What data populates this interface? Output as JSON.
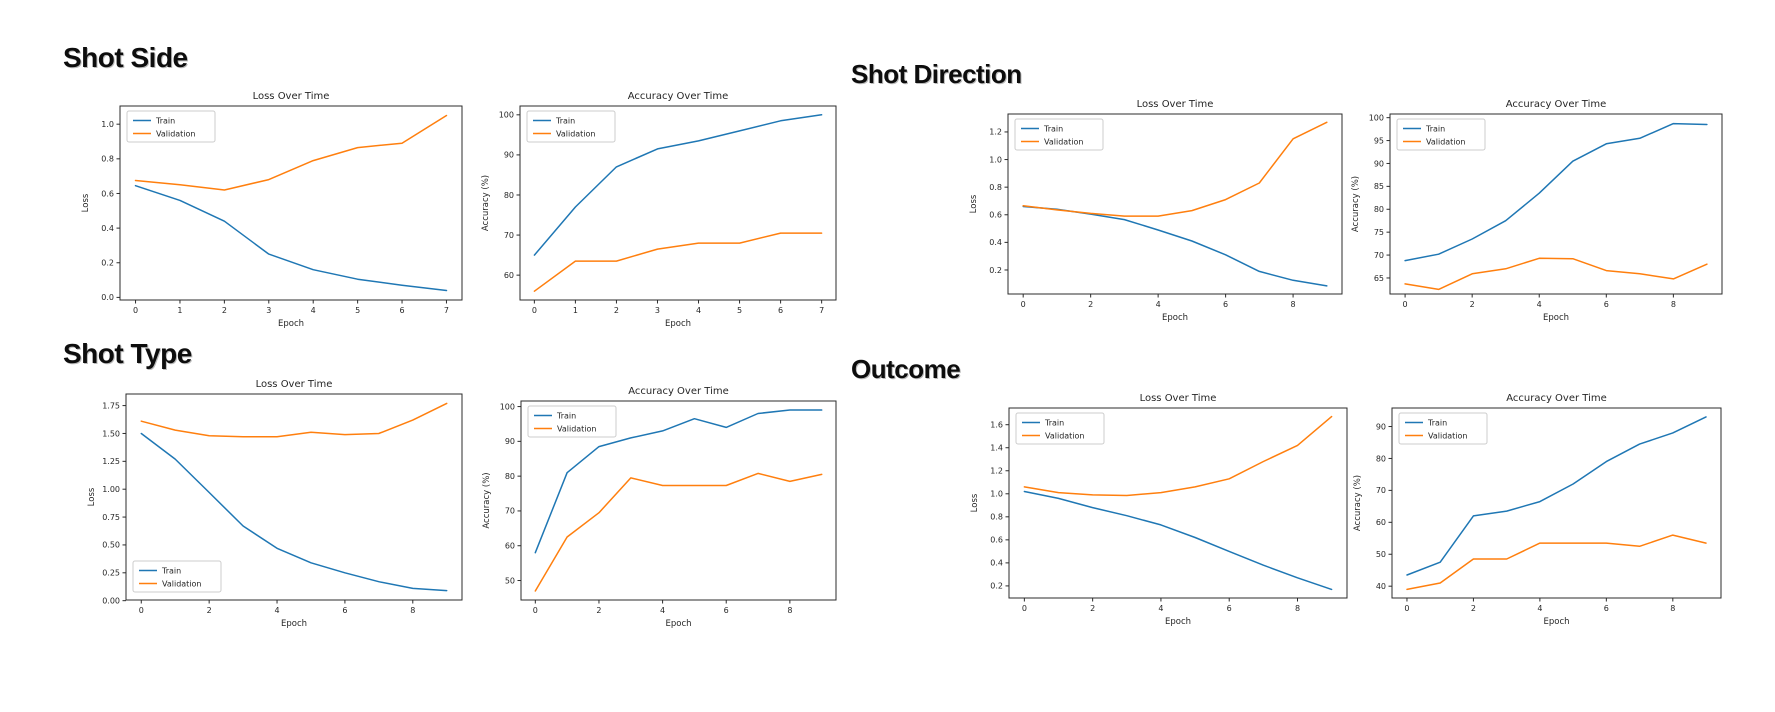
{
  "colors": {
    "train": "#1f77b4",
    "validation": "#ff7f0e",
    "axis": "#2b2b2b",
    "text": "#262626",
    "legend_border": "#cccccc"
  },
  "sections": [
    {
      "heading": "Shot Side"
    },
    {
      "heading": "Shot Direction"
    },
    {
      "heading": "Shot Type"
    },
    {
      "heading": "Outcome"
    }
  ],
  "chart_data": [
    {
      "name": "shot-side-loss",
      "type": "line",
      "title": "Loss Over Time",
      "xlabel": "Epoch",
      "ylabel": "Loss",
      "epochs": [
        0,
        1,
        2,
        3,
        4,
        5,
        6,
        7
      ],
      "series": [
        {
          "name": "Train",
          "color": "train",
          "values": [
            0.645,
            0.56,
            0.44,
            0.25,
            0.16,
            0.105,
            0.07,
            0.04
          ]
        },
        {
          "name": "Validation",
          "color": "validation",
          "values": [
            0.675,
            0.65,
            0.62,
            0.68,
            0.79,
            0.865,
            0.89,
            1.05
          ]
        }
      ],
      "xlim": [
        -0.35,
        7.35
      ],
      "ylim": [
        -0.015,
        1.105
      ],
      "xticks": [
        [
          0,
          "0"
        ],
        [
          1,
          "1"
        ],
        [
          2,
          "2"
        ],
        [
          3,
          "3"
        ],
        [
          4,
          "4"
        ],
        [
          5,
          "5"
        ],
        [
          6,
          "6"
        ],
        [
          7,
          "7"
        ]
      ],
      "yticks": [
        [
          0.0,
          "0.0"
        ],
        [
          0.2,
          "0.2"
        ],
        [
          0.4,
          "0.4"
        ],
        [
          0.6,
          "0.6"
        ],
        [
          0.8,
          "0.8"
        ],
        [
          1.0,
          "1.0"
        ]
      ],
      "legend": "upper-left",
      "grid": false
    },
    {
      "name": "shot-side-accuracy",
      "type": "line",
      "title": "Accuracy Over Time",
      "xlabel": "Epoch",
      "ylabel": "Accuracy (%)",
      "epochs": [
        0,
        1,
        2,
        3,
        4,
        5,
        6,
        7
      ],
      "series": [
        {
          "name": "Train",
          "color": "train",
          "values": [
            65,
            77,
            87,
            91.5,
            93.5,
            96,
            98.5,
            100
          ]
        },
        {
          "name": "Validation",
          "color": "validation",
          "values": [
            56,
            63.5,
            63.5,
            66.5,
            68,
            68,
            70.5,
            70.5
          ]
        }
      ],
      "xlim": [
        -0.35,
        7.35
      ],
      "ylim": [
        53.8,
        102.2
      ],
      "xticks": [
        [
          0,
          "0"
        ],
        [
          1,
          "1"
        ],
        [
          2,
          "2"
        ],
        [
          3,
          "3"
        ],
        [
          4,
          "4"
        ],
        [
          5,
          "5"
        ],
        [
          6,
          "6"
        ],
        [
          7,
          "7"
        ]
      ],
      "yticks": [
        [
          60,
          "60"
        ],
        [
          70,
          "70"
        ],
        [
          80,
          "80"
        ],
        [
          90,
          "90"
        ],
        [
          100,
          "100"
        ]
      ],
      "legend": "upper-left",
      "grid": false
    },
    {
      "name": "shot-direction-loss",
      "type": "line",
      "title": "Loss Over Time",
      "xlabel": "Epoch",
      "ylabel": "Loss",
      "epochs": [
        0,
        1,
        2,
        3,
        4,
        5,
        6,
        7,
        8,
        9
      ],
      "series": [
        {
          "name": "Train",
          "color": "train",
          "values": [
            0.66,
            0.64,
            0.605,
            0.565,
            0.49,
            0.41,
            0.31,
            0.19,
            0.125,
            0.085
          ]
        },
        {
          "name": "Validation",
          "color": "validation",
          "values": [
            0.665,
            0.635,
            0.61,
            0.59,
            0.59,
            0.63,
            0.71,
            0.83,
            1.15,
            1.27
          ]
        }
      ],
      "xlim": [
        -0.45,
        9.45
      ],
      "ylim": [
        0.026,
        1.33
      ],
      "xticks": [
        [
          0,
          "0"
        ],
        [
          2,
          "2"
        ],
        [
          4,
          "4"
        ],
        [
          6,
          "6"
        ],
        [
          8,
          "8"
        ]
      ],
      "yticks": [
        [
          0.2,
          "0.2"
        ],
        [
          0.4,
          "0.4"
        ],
        [
          0.6,
          "0.6"
        ],
        [
          0.8,
          "0.8"
        ],
        [
          1.0,
          "1.0"
        ],
        [
          1.2,
          "1.2"
        ]
      ],
      "legend": "upper-left",
      "grid": false
    },
    {
      "name": "shot-direction-accuracy",
      "type": "line",
      "title": "Accuracy Over Time",
      "xlabel": "Epoch",
      "ylabel": "Accuracy (%)",
      "epochs": [
        0,
        1,
        2,
        3,
        4,
        5,
        6,
        7,
        8,
        9
      ],
      "series": [
        {
          "name": "Train",
          "color": "train",
          "values": [
            68.8,
            70.2,
            73.5,
            77.5,
            83.5,
            90.5,
            94.3,
            95.5,
            98.7,
            98.5
          ]
        },
        {
          "name": "Validation",
          "color": "validation",
          "values": [
            63.7,
            62.5,
            65.9,
            67,
            69.3,
            69.2,
            66.6,
            65.9,
            64.8,
            68
          ]
        }
      ],
      "xlim": [
        -0.45,
        9.45
      ],
      "ylim": [
        61.5,
        100.8
      ],
      "xticks": [
        [
          0,
          "0"
        ],
        [
          2,
          "2"
        ],
        [
          4,
          "4"
        ],
        [
          6,
          "6"
        ],
        [
          8,
          "8"
        ]
      ],
      "yticks": [
        [
          65,
          "65"
        ],
        [
          70,
          "70"
        ],
        [
          75,
          "75"
        ],
        [
          80,
          "80"
        ],
        [
          85,
          "85"
        ],
        [
          90,
          "90"
        ],
        [
          95,
          "95"
        ],
        [
          100,
          "100"
        ]
      ],
      "legend": "upper-left",
      "grid": false
    },
    {
      "name": "shot-type-loss",
      "type": "line",
      "title": "Loss Over Time",
      "xlabel": "Epoch",
      "ylabel": "Loss",
      "epochs": [
        0,
        1,
        2,
        3,
        4,
        5,
        6,
        7,
        8,
        9
      ],
      "series": [
        {
          "name": "Train",
          "color": "train",
          "values": [
            1.5,
            1.27,
            0.97,
            0.67,
            0.47,
            0.34,
            0.25,
            0.17,
            0.11,
            0.09
          ]
        },
        {
          "name": "Validation",
          "color": "validation",
          "values": [
            1.61,
            1.53,
            1.48,
            1.47,
            1.47,
            1.51,
            1.49,
            1.5,
            1.62,
            1.77
          ]
        }
      ],
      "xlim": [
        -0.45,
        9.45
      ],
      "ylim": [
        0.006,
        1.854
      ],
      "xticks": [
        [
          0,
          "0"
        ],
        [
          2,
          "2"
        ],
        [
          4,
          "4"
        ],
        [
          6,
          "6"
        ],
        [
          8,
          "8"
        ]
      ],
      "yticks": [
        [
          0.0,
          "0.00"
        ],
        [
          0.25,
          "0.25"
        ],
        [
          0.5,
          "0.50"
        ],
        [
          0.75,
          "0.75"
        ],
        [
          1.0,
          "1.00"
        ],
        [
          1.25,
          "1.25"
        ],
        [
          1.5,
          "1.50"
        ],
        [
          1.75,
          "1.75"
        ]
      ],
      "legend": "lower-left",
      "grid": false
    },
    {
      "name": "shot-type-accuracy",
      "type": "line",
      "title": "Accuracy Over Time",
      "xlabel": "Epoch",
      "ylabel": "Accuracy (%)",
      "epochs": [
        0,
        1,
        2,
        3,
        4,
        5,
        6,
        7,
        8,
        9
      ],
      "series": [
        {
          "name": "Train",
          "color": "train",
          "values": [
            58,
            81,
            88.5,
            91,
            93,
            96.5,
            94,
            98,
            99,
            99
          ]
        },
        {
          "name": "Validation",
          "color": "validation",
          "values": [
            47,
            62.5,
            69.5,
            79.5,
            77.3,
            77.3,
            77.3,
            80.8,
            78.5,
            80.5
          ]
        }
      ],
      "xlim": [
        -0.45,
        9.45
      ],
      "ylim": [
        44.4,
        101.6
      ],
      "xticks": [
        [
          0,
          "0"
        ],
        [
          2,
          "2"
        ],
        [
          4,
          "4"
        ],
        [
          6,
          "6"
        ],
        [
          8,
          "8"
        ]
      ],
      "yticks": [
        [
          50,
          "50"
        ],
        [
          60,
          "60"
        ],
        [
          70,
          "70"
        ],
        [
          80,
          "80"
        ],
        [
          90,
          "90"
        ],
        [
          100,
          "100"
        ]
      ],
      "legend": "upper-left",
      "grid": false
    },
    {
      "name": "outcome-loss",
      "type": "line",
      "title": "Loss Over Time",
      "xlabel": "Epoch",
      "ylabel": "Loss",
      "epochs": [
        0,
        1,
        2,
        3,
        4,
        5,
        6,
        7,
        8,
        9
      ],
      "series": [
        {
          "name": "Train",
          "color": "train",
          "values": [
            1.02,
            0.96,
            0.88,
            0.81,
            0.73,
            0.62,
            0.5,
            0.38,
            0.27,
            0.17
          ]
        },
        {
          "name": "Validation",
          "color": "validation",
          "values": [
            1.06,
            1.01,
            0.99,
            0.985,
            1.01,
            1.06,
            1.13,
            1.28,
            1.42,
            1.67
          ]
        }
      ],
      "xlim": [
        -0.45,
        9.45
      ],
      "ylim": [
        0.095,
        1.745
      ],
      "xticks": [
        [
          0,
          "0"
        ],
        [
          2,
          "2"
        ],
        [
          4,
          "4"
        ],
        [
          6,
          "6"
        ],
        [
          8,
          "8"
        ]
      ],
      "yticks": [
        [
          0.2,
          "0.2"
        ],
        [
          0.4,
          "0.4"
        ],
        [
          0.6,
          "0.6"
        ],
        [
          0.8,
          "0.8"
        ],
        [
          1.0,
          "1.0"
        ],
        [
          1.2,
          "1.2"
        ],
        [
          1.4,
          "1.4"
        ],
        [
          1.6,
          "1.6"
        ]
      ],
      "legend": "upper-left",
      "grid": false
    },
    {
      "name": "outcome-accuracy",
      "type": "line",
      "title": "Accuracy Over Time",
      "xlabel": "Epoch",
      "ylabel": "Accuracy (%)",
      "epochs": [
        0,
        1,
        2,
        3,
        4,
        5,
        6,
        7,
        8,
        9
      ],
      "series": [
        {
          "name": "Train",
          "color": "train",
          "values": [
            43.5,
            47.5,
            62,
            63.5,
            66.5,
            72,
            79,
            84.5,
            88,
            93
          ]
        },
        {
          "name": "Validation",
          "color": "validation",
          "values": [
            39,
            41,
            48.5,
            48.5,
            53.5,
            53.5,
            53.5,
            52.5,
            56,
            53.5
          ]
        }
      ],
      "xlim": [
        -0.45,
        9.45
      ],
      "ylim": [
        36.3,
        95.8
      ],
      "xticks": [
        [
          0,
          "0"
        ],
        [
          2,
          "2"
        ],
        [
          4,
          "4"
        ],
        [
          6,
          "6"
        ],
        [
          8,
          "8"
        ]
      ],
      "yticks": [
        [
          40,
          "40"
        ],
        [
          50,
          "50"
        ],
        [
          60,
          "60"
        ],
        [
          70,
          "70"
        ],
        [
          80,
          "80"
        ],
        [
          90,
          "90"
        ]
      ],
      "legend": "upper-left",
      "grid": false
    }
  ]
}
